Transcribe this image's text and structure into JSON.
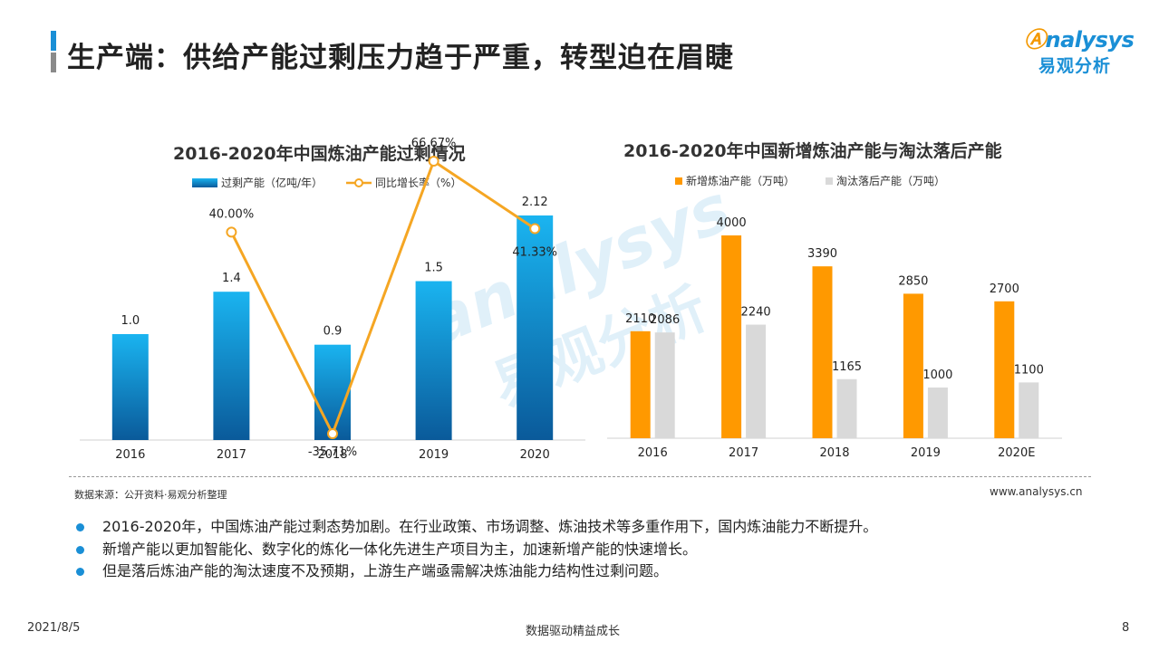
{
  "page": {
    "title": "生产端：供给产能过剩压力趋于严重，转型迫在眉睫",
    "logo_en": "nalysys",
    "logo_cn": "易观分析",
    "source": "数据来源：公开资料·易观分析整理",
    "site": "www.analysys.cn",
    "bullets": [
      "2016-2020年，中国炼油产能过剩态势加剧。在行业政策、市场调整、炼油技术等多重作用下，国内炼油能力不断提升。",
      "新增产能以更加智能化、数字化的炼化一体化先进生产项目为主，加速新增产能的快速增长。",
      "但是落后炼油产能的淘汰速度不及预期，上游生产端亟需解决炼油能力结构性过剩问题。"
    ],
    "footer_date": "2021/8/5",
    "footer_center": "数据驱动精益成长",
    "page_number": "8",
    "watermark_en": "analysys",
    "watermark_cn": "易观分析"
  },
  "colors": {
    "brand_blue": "#1a8fd6",
    "brand_orange": "#f39800",
    "bar_blue_top": "#1ab4f0",
    "bar_blue_bottom": "#0a5a9a",
    "line_orange": "#f5a623",
    "bar_orange": "#ff9900",
    "bar_gray": "#d9d9d9"
  },
  "chart_data": [
    {
      "type": "bar+line",
      "title": "2016-2020年中国炼油产能过剩情况",
      "categories": [
        "2016",
        "2017",
        "2018",
        "2019",
        "2020"
      ],
      "series": [
        {
          "name": "过剩产能（亿吨/年）",
          "type": "bar",
          "values": [
            1.0,
            1.4,
            0.9,
            1.5,
            2.12
          ],
          "labels": [
            "1.0",
            "1.4",
            "0.9",
            "1.5",
            "2.12"
          ]
        },
        {
          "name": "同比增长率（%）",
          "type": "line",
          "values": [
            null,
            40.0,
            -35.71,
            66.67,
            41.33
          ],
          "labels": [
            "",
            "40.00%",
            "-35.71%",
            "66.67%",
            "41.33%"
          ]
        }
      ],
      "ylim_bar": [
        0,
        2.5
      ],
      "ylim_line": [
        -60,
        80
      ],
      "legend": "top-center",
      "grid": false
    },
    {
      "type": "bar",
      "title": "2016-2020年中国新增炼油产能与淘汰落后产能",
      "categories": [
        "2016",
        "2017",
        "2018",
        "2019",
        "2020E"
      ],
      "series": [
        {
          "name": "新增炼油产能（万吨）",
          "values": [
            2110,
            4000,
            3390,
            2850,
            2700
          ]
        },
        {
          "name": "淘汰落后产能（万吨）",
          "values": [
            2086,
            2240,
            1165,
            1000,
            1100
          ]
        }
      ],
      "ylim": [
        0,
        4500
      ],
      "legend": "top-left",
      "grid": false
    }
  ]
}
